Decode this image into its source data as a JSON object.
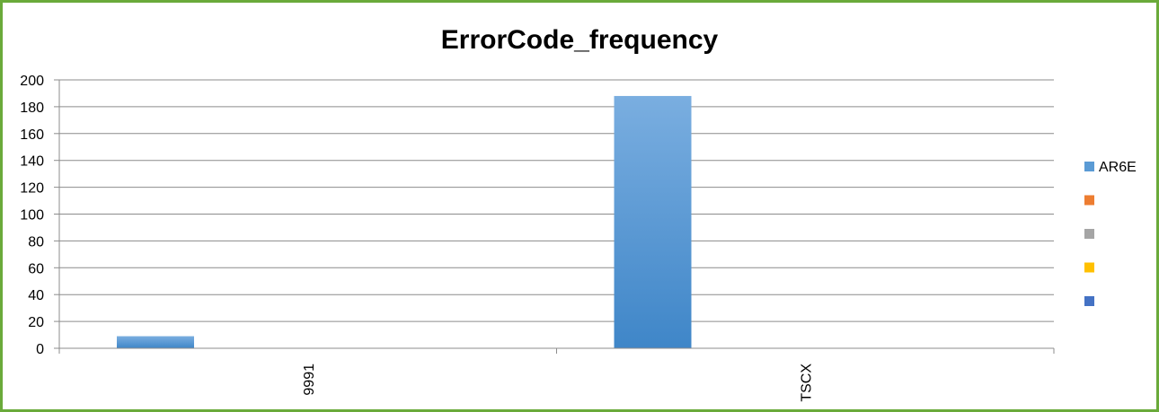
{
  "chart_data": {
    "type": "bar",
    "title": "ErrorCode_frequency",
    "xlabel": "",
    "ylabel": "",
    "categories": [
      "9991",
      "TSCX"
    ],
    "series": [
      {
        "name": "AR6E",
        "values": [
          9,
          188
        ],
        "color": "#5b9bd5"
      }
    ],
    "ylim": [
      0,
      200
    ],
    "yticks": [
      0,
      20,
      40,
      60,
      80,
      100,
      120,
      140,
      160,
      180,
      200
    ],
    "grid": true,
    "legend_position": "right",
    "legend": [
      {
        "label": "AR6E",
        "color": "#5b9bd5"
      },
      {
        "label": "",
        "color": "#ed7d31"
      },
      {
        "label": "",
        "color": "#a5a5a5"
      },
      {
        "label": "",
        "color": "#ffc000"
      },
      {
        "label": "",
        "color": "#4472c4"
      }
    ]
  }
}
